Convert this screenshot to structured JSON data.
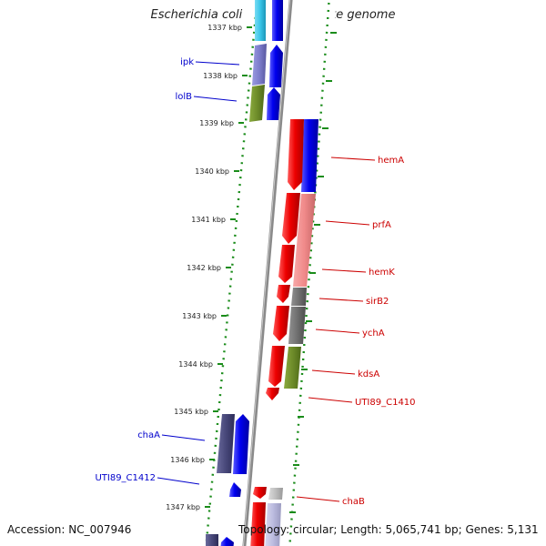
{
  "title": "Escherichia coli UTI89, complete genome",
  "footer": {
    "accession": "Accession: NC_007946",
    "topology": "Topology: circular; Length: 5,065,741 bp; Genes: 5,131"
  },
  "ticks": [
    "1337 kbp",
    "1338 kbp",
    "1339 kbp",
    "1340 kbp",
    "1341 kbp",
    "1342 kbp",
    "1343 kbp",
    "1344 kbp",
    "1345 kbp",
    "1346 kbp",
    "1347 kbp"
  ],
  "genes": {
    "left": [
      {
        "name": "ipk",
        "strand": "reverse"
      },
      {
        "name": "lolB",
        "strand": "reverse"
      },
      {
        "name": "chaA",
        "strand": "reverse"
      },
      {
        "name": "UTI89_C1412",
        "strand": "reverse"
      }
    ],
    "right": [
      {
        "name": "hemA",
        "strand": "forward"
      },
      {
        "name": "prfA",
        "strand": "forward"
      },
      {
        "name": "hemK",
        "strand": "forward"
      },
      {
        "name": "sirB2",
        "strand": "forward"
      },
      {
        "name": "ychA",
        "strand": "forward"
      },
      {
        "name": "kdsA",
        "strand": "forward"
      },
      {
        "name": "UTI89_C1410",
        "strand": "forward"
      },
      {
        "name": "chaB",
        "strand": "forward"
      }
    ]
  },
  "colors": {
    "forward_gene": "#ff0000",
    "reverse_gene": "#0000ff",
    "reverse_label": "#0000cc",
    "forward_label": "#cc0000",
    "cog_purple": "#7d7dcc",
    "cog_olive": "#6e8c2a",
    "cog_salmon": "#f08a8a",
    "cog_gray": "#707070",
    "cog_navy": "#48487a",
    "cog_cyan": "#39c5e8",
    "tick_green": "#1a8c1a",
    "backbone": "#8a8a8a"
  }
}
